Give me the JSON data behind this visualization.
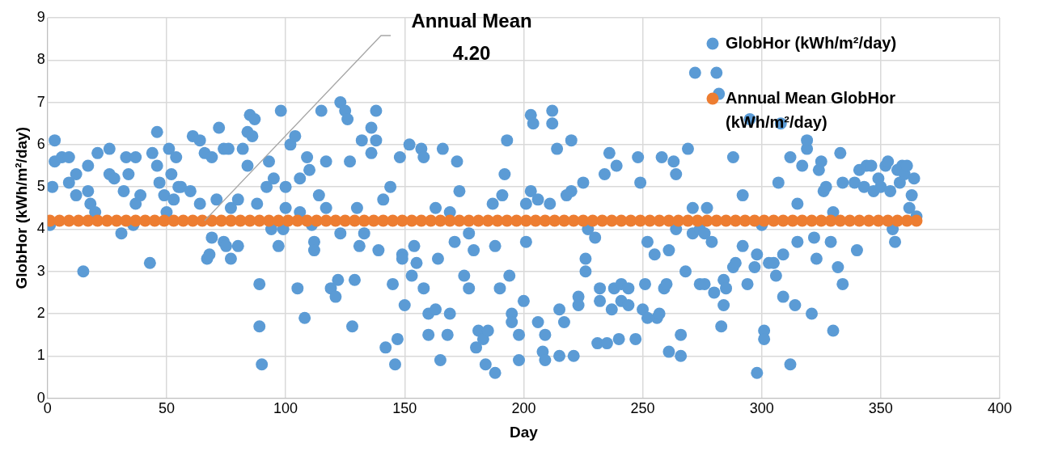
{
  "chart_data": {
    "type": "scatter",
    "xlabel": "Day",
    "ylabel": "GlobHor (kWh/m²/day)",
    "xlim": [
      0,
      400
    ],
    "xticks": [
      0,
      50,
      100,
      150,
      200,
      250,
      300,
      350,
      400
    ],
    "ylim": [
      0,
      9
    ],
    "yticks": [
      0,
      1,
      2,
      3,
      4,
      5,
      6,
      7,
      8,
      9
    ],
    "grid": true,
    "legend": "top right",
    "marker": "circle",
    "annotations": [
      {
        "text": "Annual Mean\n4.20",
        "x": 66,
        "y": 4.2
      }
    ],
    "series": [
      {
        "name": "GlobHor (kWh/m²/day)",
        "color": "#5b9bd5",
        "x": [
          1,
          2,
          3,
          3,
          6,
          9,
          9,
          12,
          12,
          15,
          17,
          17,
          18,
          20,
          21,
          26,
          26,
          28,
          31,
          32,
          33,
          34,
          36,
          37,
          37,
          39,
          43,
          44,
          46,
          46,
          47,
          49,
          50,
          51,
          52,
          53,
          54,
          55,
          56,
          60,
          61,
          64,
          64,
          66,
          67,
          68,
          69,
          69,
          71,
          72,
          74,
          74,
          75,
          76,
          77,
          77,
          80,
          80,
          82,
          84,
          84,
          85,
          86,
          87,
          88,
          89,
          89,
          90,
          92,
          93,
          94,
          95,
          97,
          98,
          99,
          100,
          100,
          102,
          104,
          105,
          106,
          106,
          108,
          109,
          110,
          111,
          112,
          112,
          114,
          115,
          117,
          117,
          119,
          121,
          122,
          123,
          123,
          125,
          126,
          127,
          128,
          129,
          130,
          131,
          132,
          133,
          136,
          136,
          138,
          138,
          139,
          141,
          142,
          144,
          145,
          146,
          147,
          148,
          149,
          149,
          150,
          152,
          153,
          154,
          155,
          157,
          158,
          158,
          160,
          160,
          163,
          163,
          164,
          165,
          166,
          168,
          169,
          169,
          171,
          172,
          173,
          175,
          177,
          177,
          179,
          180,
          181,
          183,
          184,
          185,
          187,
          188,
          188,
          190,
          191,
          192,
          193,
          194,
          195,
          195,
          198,
          198,
          200,
          201,
          201,
          203,
          203,
          204,
          206,
          206,
          208,
          209,
          209,
          211,
          212,
          212,
          214,
          215,
          215,
          217,
          218,
          220,
          220,
          221,
          223,
          223,
          225,
          226,
          226,
          227,
          230,
          231,
          232,
          232,
          234,
          235,
          236,
          237,
          238,
          239,
          240,
          241,
          241,
          244,
          244,
          247,
          248,
          249,
          250,
          251,
          252,
          252,
          255,
          256,
          257,
          258,
          259,
          260,
          261,
          261,
          263,
          264,
          264,
          266,
          266,
          268,
          269,
          271,
          271,
          272,
          274,
          274,
          276,
          276,
          277,
          279,
          280,
          281,
          282,
          283,
          284,
          284,
          285,
          288,
          288,
          289,
          292,
          292,
          294,
          295,
          297,
          298,
          298,
          300,
          301,
          301,
          303,
          305,
          306,
          307,
          308,
          309,
          309,
          312,
          312,
          314,
          315,
          315,
          317,
          319,
          319,
          321,
          322,
          323,
          324,
          325,
          326,
          327,
          329,
          330,
          330,
          332,
          333,
          334,
          334,
          339,
          340,
          341,
          343,
          344,
          346,
          347,
          349,
          350,
          352,
          353,
          354,
          355,
          356,
          357,
          358,
          359,
          360,
          361,
          362,
          363,
          364,
          365
        ],
        "values": [
          4.1,
          5.0,
          6.1,
          5.6,
          5.7,
          5.7,
          5.1,
          5.3,
          4.8,
          3.0,
          4.9,
          5.5,
          4.6,
          4.4,
          5.8,
          5.9,
          5.3,
          5.2,
          3.9,
          4.9,
          5.7,
          5.3,
          4.1,
          5.7,
          4.6,
          4.8,
          3.2,
          5.8,
          6.3,
          5.5,
          5.1,
          4.8,
          4.4,
          5.9,
          5.3,
          4.7,
          5.7,
          5.0,
          5.0,
          4.9,
          6.2,
          6.1,
          4.6,
          5.8,
          3.3,
          3.4,
          5.7,
          3.8,
          4.7,
          6.4,
          5.9,
          3.7,
          3.6,
          5.9,
          3.3,
          4.5,
          4.7,
          3.6,
          5.9,
          5.5,
          6.3,
          6.7,
          6.2,
          6.6,
          4.6,
          2.7,
          1.7,
          0.8,
          5.0,
          5.6,
          4.0,
          5.2,
          3.6,
          6.8,
          4.0,
          5.0,
          4.5,
          6.0,
          6.2,
          2.6,
          5.2,
          4.4,
          1.9,
          5.7,
          5.4,
          4.1,
          3.7,
          3.5,
          4.8,
          6.8,
          5.6,
          4.5,
          2.6,
          2.4,
          2.8,
          3.9,
          7.0,
          6.8,
          6.6,
          5.6,
          1.7,
          2.8,
          4.5,
          3.6,
          6.1,
          3.9,
          6.4,
          5.8,
          6.1,
          6.8,
          3.5,
          4.7,
          1.2,
          5.0,
          2.7,
          0.8,
          1.4,
          5.7,
          3.4,
          3.3,
          2.2,
          6.0,
          2.9,
          3.6,
          3.2,
          5.9,
          5.7,
          2.6,
          2.0,
          1.5,
          2.1,
          4.5,
          3.3,
          0.9,
          5.9,
          1.5,
          4.4,
          2.0,
          3.7,
          5.6,
          4.9,
          2.9,
          3.9,
          2.6,
          3.5,
          1.2,
          1.6,
          1.4,
          0.8,
          1.6,
          4.6,
          0.6,
          3.6,
          2.6,
          4.8,
          5.3,
          6.1,
          2.9,
          2.0,
          1.8,
          1.5,
          0.9,
          2.3,
          3.7,
          4.6,
          4.9,
          6.7,
          6.5,
          4.7,
          1.8,
          1.1,
          1.5,
          0.9,
          4.6,
          6.5,
          6.8,
          5.9,
          2.1,
          1.0,
          1.8,
          4.8,
          4.9,
          6.1,
          1.0,
          2.4,
          2.2,
          5.1,
          3.3,
          3.0,
          4.0,
          3.8,
          1.3,
          2.6,
          2.3,
          5.3,
          1.3,
          5.8,
          2.1,
          2.6,
          5.5,
          1.4,
          2.3,
          2.7,
          2.6,
          2.2,
          1.4,
          5.7,
          5.1,
          2.1,
          2.7,
          1.9,
          3.7,
          3.4,
          1.9,
          2.0,
          5.7,
          2.6,
          2.7,
          1.1,
          3.5,
          5.6,
          4.0,
          5.3,
          1.0,
          1.5,
          3.0,
          5.9,
          3.9,
          4.5,
          7.7,
          2.7,
          4.0,
          3.9,
          2.7,
          4.5,
          3.7,
          2.5,
          7.7,
          7.2,
          1.7,
          2.8,
          2.2,
          2.6,
          5.7,
          3.1,
          3.2,
          4.8,
          3.6,
          2.7,
          6.6,
          3.1,
          3.4,
          0.6,
          4.1,
          1.6,
          1.4,
          3.2,
          3.2,
          2.9,
          5.1,
          6.5,
          2.4,
          3.4,
          0.8,
          5.7,
          2.2,
          3.7,
          4.6,
          5.5,
          5.9,
          6.1,
          2.0,
          3.8,
          3.3,
          5.4,
          5.6,
          4.9,
          5.0,
          3.7,
          1.6,
          4.4,
          3.1,
          5.8,
          2.7,
          5.1,
          5.1,
          3.5,
          5.4,
          5.0,
          5.5,
          5.5,
          4.9,
          5.2,
          5.0,
          5.5,
          5.6,
          4.9,
          4.0,
          3.7,
          5.4,
          5.1,
          5.5,
          5.3,
          5.5,
          4.5,
          4.8,
          5.2,
          4.3
        ]
      },
      {
        "name": "Annual Mean GlobHor (kWh/m²/day)",
        "color": "#ed7d31",
        "x": [
          1,
          5,
          9,
          13,
          17,
          21,
          25,
          29,
          33,
          37,
          41,
          45,
          49,
          53,
          57,
          61,
          65,
          69,
          73,
          77,
          81,
          85,
          89,
          93,
          97,
          101,
          105,
          109,
          113,
          117,
          121,
          125,
          129,
          133,
          137,
          141,
          145,
          149,
          153,
          157,
          161,
          165,
          169,
          173,
          177,
          181,
          185,
          189,
          193,
          197,
          201,
          205,
          209,
          213,
          217,
          221,
          225,
          229,
          233,
          237,
          241,
          245,
          249,
          253,
          257,
          261,
          265,
          269,
          273,
          277,
          281,
          285,
          289,
          293,
          297,
          301,
          305,
          309,
          313,
          317,
          321,
          325,
          329,
          333,
          337,
          341,
          345,
          349,
          353,
          357,
          361,
          365
        ],
        "values": [
          4.2,
          4.2,
          4.2,
          4.2,
          4.2,
          4.2,
          4.2,
          4.2,
          4.2,
          4.2,
          4.2,
          4.2,
          4.2,
          4.2,
          4.2,
          4.2,
          4.2,
          4.2,
          4.2,
          4.2,
          4.2,
          4.2,
          4.2,
          4.2,
          4.2,
          4.2,
          4.2,
          4.2,
          4.2,
          4.2,
          4.2,
          4.2,
          4.2,
          4.2,
          4.2,
          4.2,
          4.2,
          4.2,
          4.2,
          4.2,
          4.2,
          4.2,
          4.2,
          4.2,
          4.2,
          4.2,
          4.2,
          4.2,
          4.2,
          4.2,
          4.2,
          4.2,
          4.2,
          4.2,
          4.2,
          4.2,
          4.2,
          4.2,
          4.2,
          4.2,
          4.2,
          4.2,
          4.2,
          4.2,
          4.2,
          4.2,
          4.2,
          4.2,
          4.2,
          4.2,
          4.2,
          4.2,
          4.2,
          4.2,
          4.2,
          4.2,
          4.2,
          4.2,
          4.2,
          4.2,
          4.2,
          4.2,
          4.2,
          4.2,
          4.2,
          4.2,
          4.2,
          4.2,
          4.2,
          4.2,
          4.2,
          4.2
        ]
      }
    ]
  }
}
